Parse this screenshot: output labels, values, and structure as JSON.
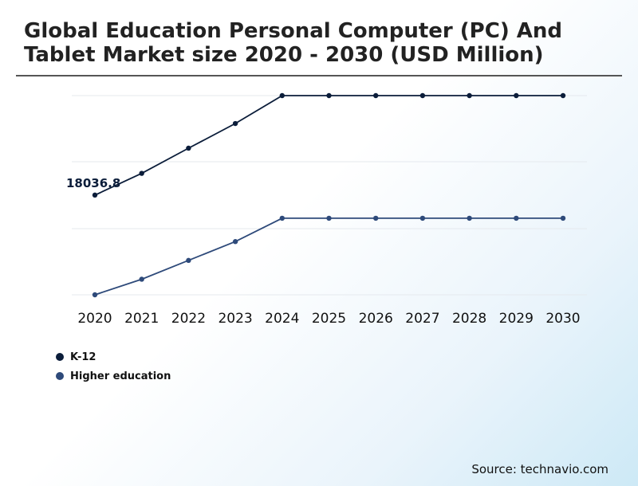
{
  "header": {
    "title": "Global Education Personal Computer (PC) And Tablet Market size 2020 - 2030 (USD Million)"
  },
  "source": "Source: technavio.com",
  "colors": {
    "k12": "#0b1d3a",
    "higher_education": "#2e4a7a",
    "gridline": "#e5e9ee",
    "rule": "#555555"
  },
  "chart_data": {
    "type": "line",
    "x": [
      "2020",
      "2021",
      "2022",
      "2023",
      "2024",
      "2025",
      "2026",
      "2027",
      "2028",
      "2029",
      "2030"
    ],
    "series": [
      {
        "name": "K-12",
        "color": "#0b1d3a",
        "values": [
          18036.8,
          18372,
          18760,
          19140,
          19570,
          19570,
          19570,
          19570,
          19570,
          19570,
          19570
        ]
      },
      {
        "name": "Higher education",
        "color": "#2e4a7a",
        "values": [
          16500,
          16740,
          17030,
          17320,
          17680,
          17680,
          17680,
          17680,
          17680,
          17680,
          17680
        ]
      }
    ],
    "data_labels": [
      {
        "series": "K-12",
        "x": "2020",
        "text": "18036.8"
      }
    ],
    "ylim": [
      16500,
      19570
    ],
    "grid": true,
    "legend": "bottom-left",
    "xlabel": "",
    "ylabel": ""
  }
}
